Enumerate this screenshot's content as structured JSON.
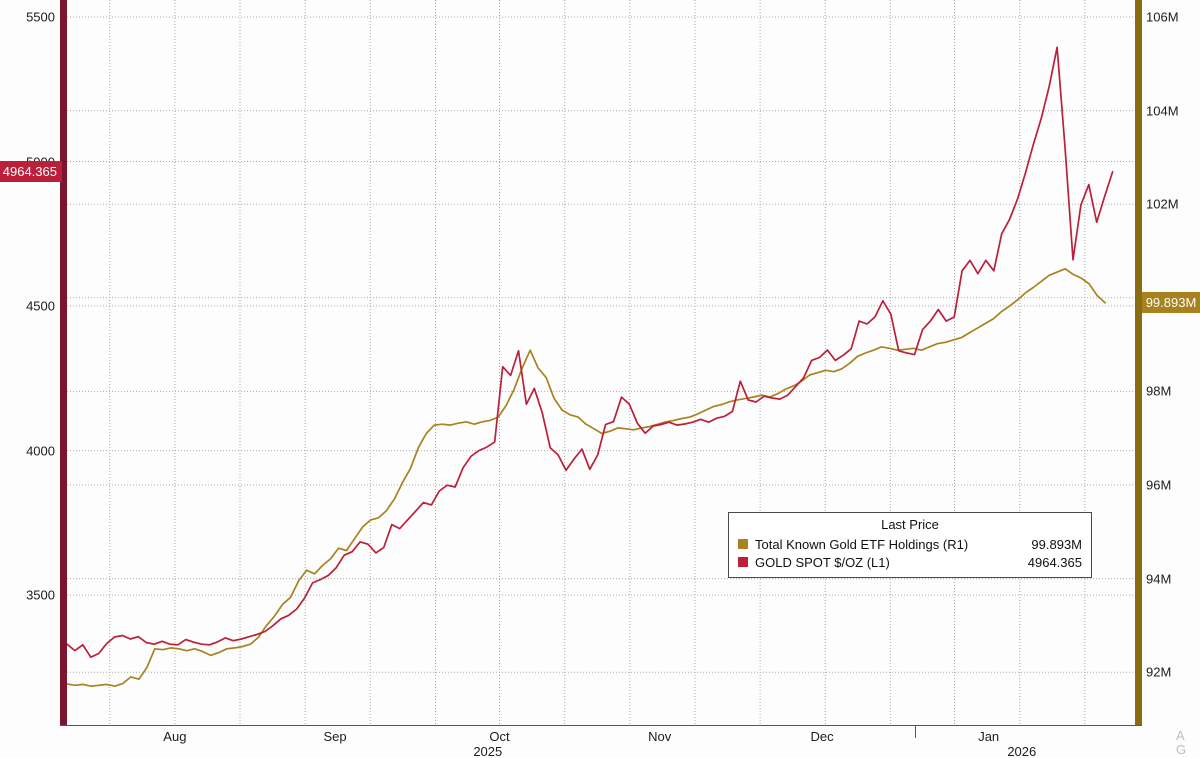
{
  "chart_data": {
    "type": "line",
    "grid": true,
    "legend_position": "bottom-right-inside",
    "legend": {
      "title": "Last Price",
      "entries": [
        {
          "label": "Total Known Gold ETF Holdings  (R1)",
          "value": "99.893M",
          "color": "#a8821f"
        },
        {
          "label": "GOLD SPOT $/OZ  (L1)",
          "value": "4964.365",
          "color": "#bb1f3a"
        }
      ]
    },
    "left_axis": {
      "color": "#7c1630",
      "min": 3050.5,
      "max": 5558.8,
      "ticks": [
        {
          "value": 5500,
          "label": "5500"
        },
        {
          "value": 5000,
          "label": "5000"
        },
        {
          "value": 4500,
          "label": "4500"
        },
        {
          "value": 4000,
          "label": "4000"
        },
        {
          "value": 3500,
          "label": "3500"
        }
      ],
      "badge": {
        "label": "4964.365",
        "value": 4964.365,
        "color": "#bb1f3a"
      }
    },
    "right_axis": {
      "color": "#8a6d12",
      "min": 90.872,
      "max": 106.363,
      "ticks": [
        {
          "value": 106,
          "label": "106M"
        },
        {
          "value": 104,
          "label": "104M"
        },
        {
          "value": 102,
          "label": "102M"
        },
        {
          "value": 100,
          "label": "100M"
        },
        {
          "value": 98,
          "label": "98M"
        },
        {
          "value": 96,
          "label": "96M"
        },
        {
          "value": 94,
          "label": "94M"
        },
        {
          "value": 92,
          "label": "92M"
        }
      ],
      "badge": {
        "label": "99.893M",
        "value": 99.893,
        "color": "#a8821f"
      }
    },
    "x_axis": {
      "months": [
        {
          "label": "Aug",
          "t": 0.101
        },
        {
          "label": "Sep",
          "t": 0.251
        },
        {
          "label": "Oct",
          "t": 0.405
        },
        {
          "label": "Nov",
          "t": 0.555
        },
        {
          "label": "Dec",
          "t": 0.707
        },
        {
          "label": "Jan",
          "t": 0.863
        }
      ],
      "years": [
        {
          "label": "2025",
          "t": 0.394
        },
        {
          "label": "2026",
          "t": 0.894
        }
      ],
      "separator_t": 0.794,
      "gridlines_t": [
        0.04,
        0.101,
        0.162,
        0.223,
        0.284,
        0.345,
        0.405,
        0.466,
        0.527,
        0.588,
        0.649,
        0.71,
        0.771,
        0.831,
        0.892,
        0.953
      ]
    },
    "series": [
      {
        "name": "Total Known Gold ETF Holdings",
        "axis": "right",
        "color": "#a8821f",
        "t0": 0,
        "t1": 0.972,
        "values": [
          91.75,
          91.72,
          91.74,
          91.7,
          91.72,
          91.74,
          91.7,
          91.76,
          91.9,
          91.85,
          92.1,
          92.5,
          92.48,
          92.52,
          92.5,
          92.46,
          92.5,
          92.44,
          92.36,
          92.42,
          92.5,
          92.52,
          92.55,
          92.6,
          92.75,
          93.0,
          93.2,
          93.45,
          93.6,
          93.95,
          94.18,
          94.1,
          94.28,
          94.42,
          94.65,
          94.6,
          94.85,
          95.1,
          95.25,
          95.3,
          95.45,
          95.7,
          96.05,
          96.35,
          96.8,
          97.1,
          97.28,
          97.3,
          97.28,
          97.32,
          97.35,
          97.3,
          97.35,
          97.38,
          97.45,
          97.7,
          98.05,
          98.5,
          98.88,
          98.5,
          98.3,
          97.85,
          97.6,
          97.5,
          97.45,
          97.3,
          97.2,
          97.1,
          97.15,
          97.22,
          97.2,
          97.18,
          97.22,
          97.25,
          97.3,
          97.35,
          97.38,
          97.42,
          97.45,
          97.52,
          97.6,
          97.68,
          97.72,
          97.78,
          97.82,
          97.85,
          97.88,
          97.92,
          97.88,
          97.95,
          98.05,
          98.12,
          98.22,
          98.35,
          98.4,
          98.45,
          98.42,
          98.48,
          98.6,
          98.75,
          98.82,
          98.88,
          98.95,
          98.92,
          98.88,
          98.9,
          98.92,
          98.88,
          98.95,
          99.02,
          99.05,
          99.1,
          99.15,
          99.25,
          99.35,
          99.45,
          99.55,
          99.7,
          99.82,
          99.95,
          100.1,
          100.22,
          100.35,
          100.48,
          100.55,
          100.62,
          100.5,
          100.42,
          100.3,
          100.05,
          99.893
        ]
      },
      {
        "name": "GOLD SPOT $/OZ",
        "axis": "left",
        "color": "#bb1f3a",
        "t0": 0,
        "t1": 0.979,
        "values": [
          3330,
          3308,
          3328,
          3285,
          3298,
          3332,
          3355,
          3360,
          3348,
          3356,
          3336,
          3330,
          3340,
          3330,
          3328,
          3346,
          3337,
          3330,
          3328,
          3338,
          3352,
          3342,
          3348,
          3356,
          3364,
          3374,
          3394,
          3418,
          3430,
          3452,
          3490,
          3542,
          3554,
          3568,
          3595,
          3638,
          3650,
          3684,
          3676,
          3646,
          3665,
          3744,
          3730,
          3760,
          3790,
          3820,
          3812,
          3860,
          3880,
          3874,
          3940,
          3980,
          4000,
          4012,
          4030,
          4290,
          4260,
          4345,
          4160,
          4215,
          4130,
          4010,
          3985,
          3932,
          3970,
          4005,
          3935,
          3985,
          4090,
          4100,
          4185,
          4160,
          4095,
          4060,
          4085,
          4090,
          4098,
          4088,
          4092,
          4098,
          4108,
          4098,
          4112,
          4118,
          4135,
          4240,
          4175,
          4168,
          4188,
          4182,
          4178,
          4192,
          4222,
          4252,
          4312,
          4322,
          4348,
          4312,
          4330,
          4352,
          4448,
          4438,
          4462,
          4518,
          4472,
          4345,
          4338,
          4332,
          4418,
          4448,
          4488,
          4448,
          4462,
          4622,
          4658,
          4612,
          4658,
          4622,
          4750,
          4800,
          4870,
          4960,
          5060,
          5150,
          5260,
          5395,
          5050,
          4660,
          4850,
          4920,
          4790,
          4880,
          4964.365
        ]
      }
    ],
    "watermark": {
      "lines": [
        "A",
        "G"
      ]
    }
  }
}
